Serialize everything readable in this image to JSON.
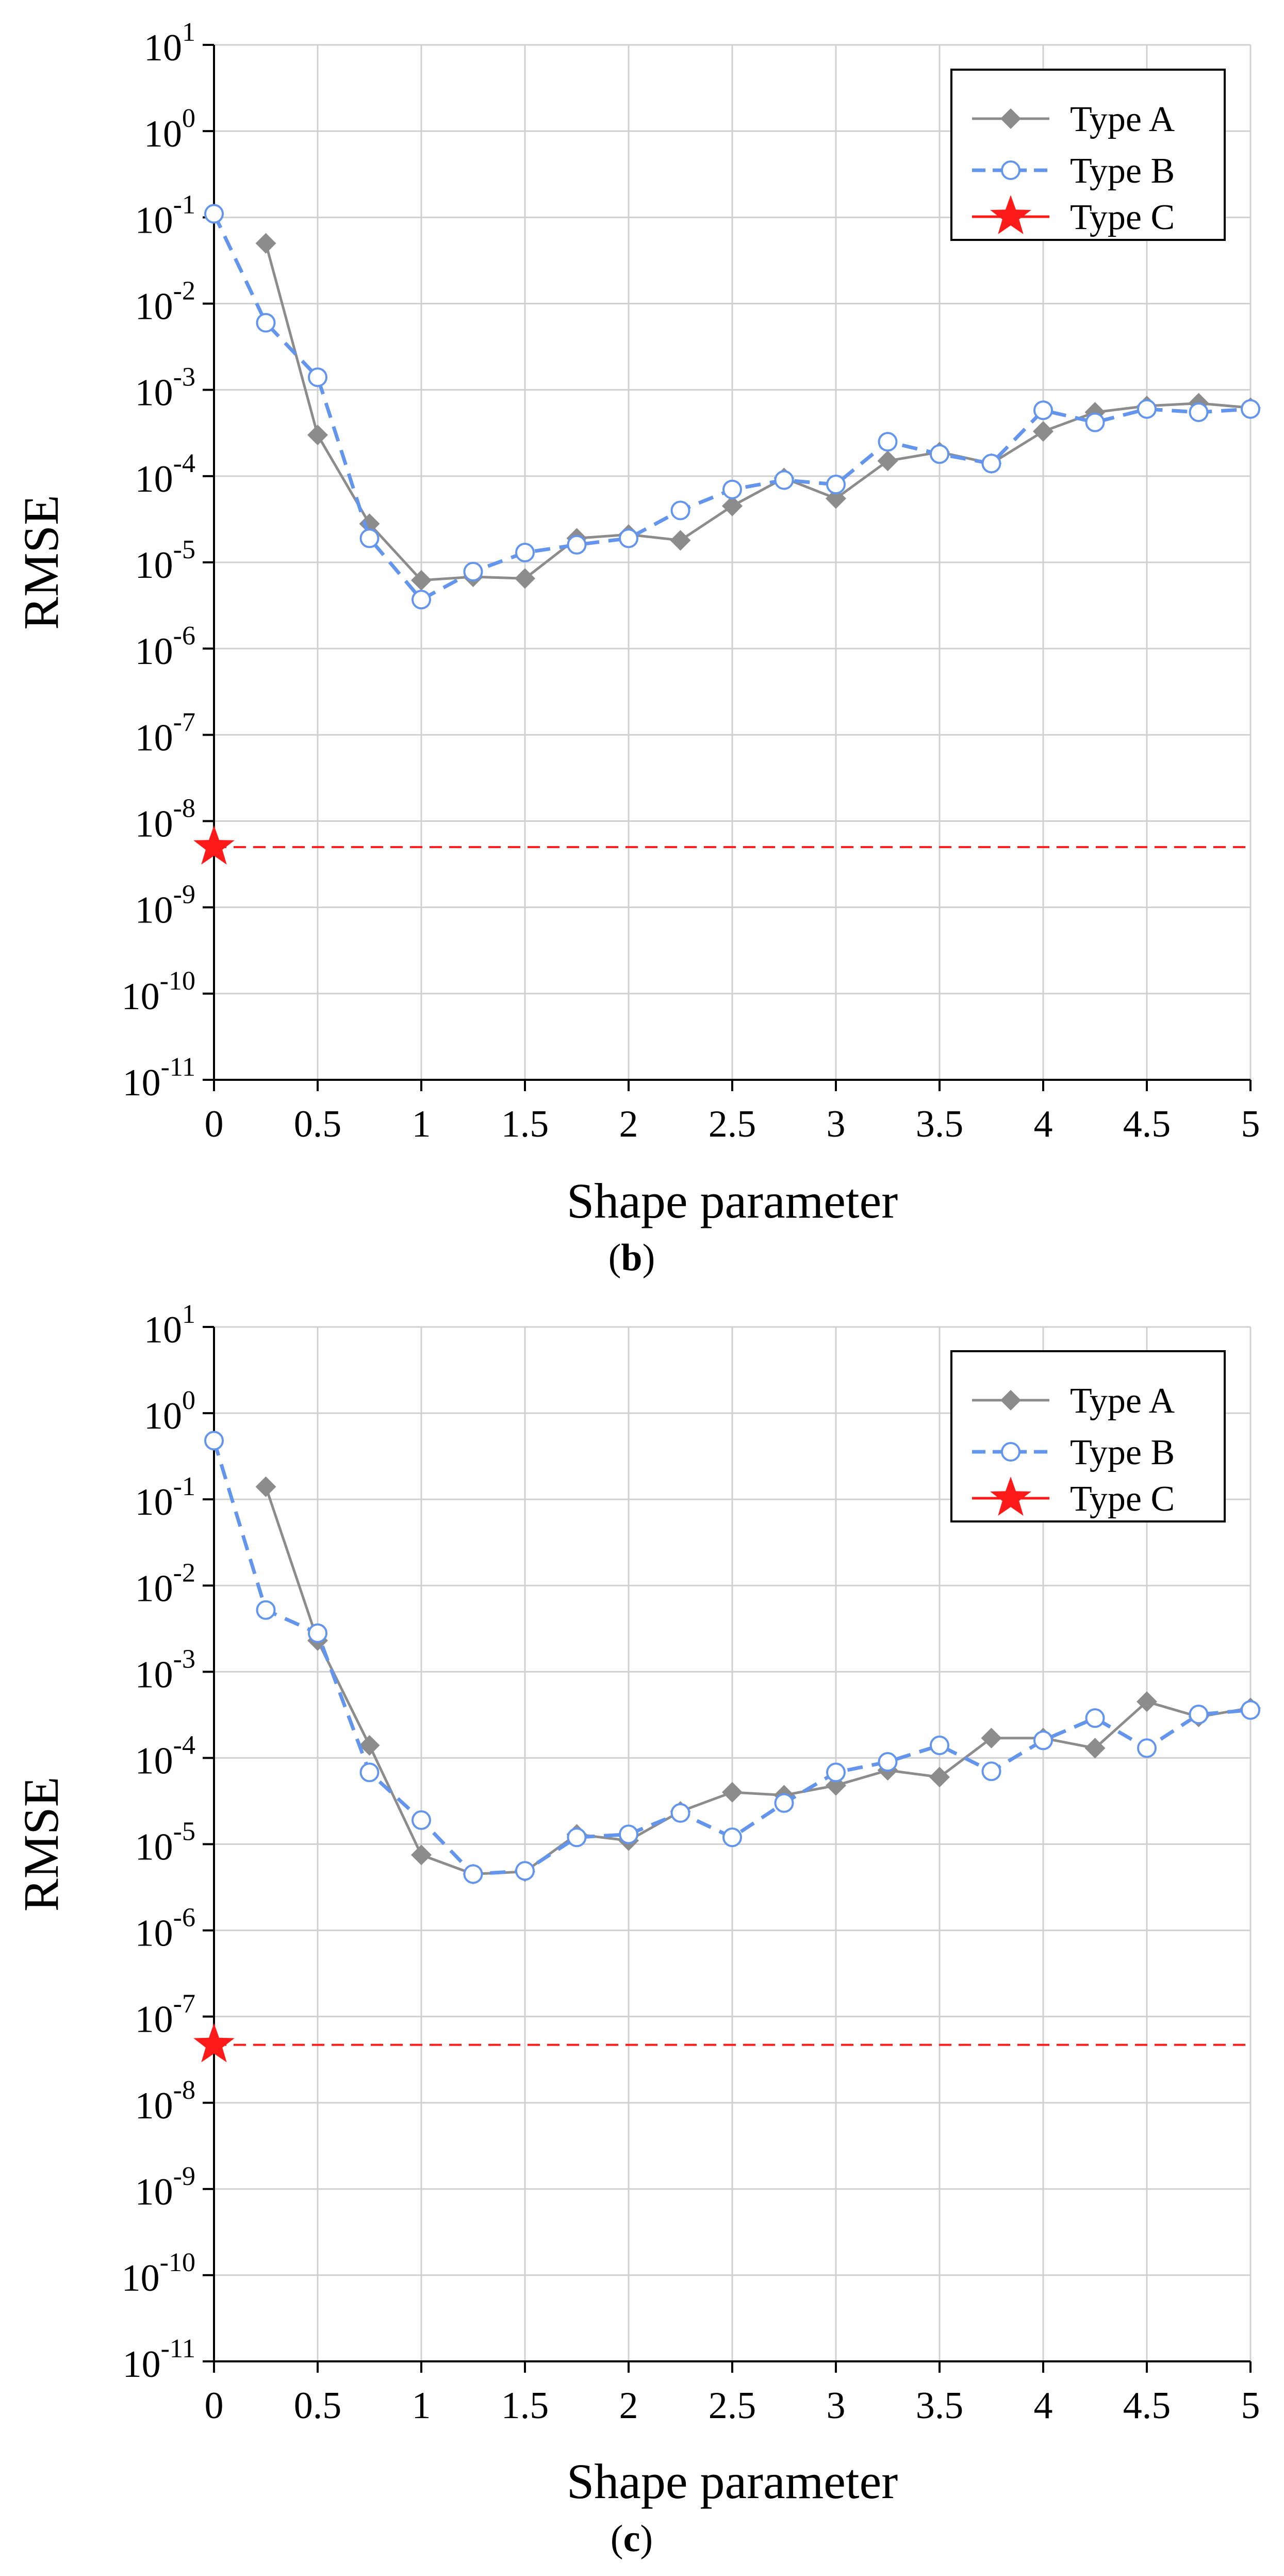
{
  "colors": {
    "type_a": "#8c8c8c",
    "type_b": "#6495ed",
    "type_c": "#ff1a1a",
    "grid": "#d0d0d0"
  },
  "chart_data": [
    {
      "type": "line",
      "panel_label": "b",
      "xlabel": "Shape parameter",
      "ylabel": "RMSE",
      "xlim": [
        0,
        5
      ],
      "ylim_exp": [
        -11,
        1
      ],
      "yscale": "log",
      "legend_position": "top-right",
      "xticks": [
        "0",
        "0.5",
        "1",
        "1.5",
        "2",
        "2.5",
        "3",
        "3.5",
        "4",
        "4.5",
        "5"
      ],
      "yticks": [
        {
          "base": "10",
          "exp": "1"
        },
        {
          "base": "10",
          "exp": "0"
        },
        {
          "base": "10",
          "exp": "-1"
        },
        {
          "base": "10",
          "exp": "-2"
        },
        {
          "base": "10",
          "exp": "-3"
        },
        {
          "base": "10",
          "exp": "-4"
        },
        {
          "base": "10",
          "exp": "-5"
        },
        {
          "base": "10",
          "exp": "-6"
        },
        {
          "base": "10",
          "exp": "-7"
        },
        {
          "base": "10",
          "exp": "-8"
        },
        {
          "base": "10",
          "exp": "-9"
        },
        {
          "base": "10",
          "exp": "-10"
        },
        {
          "base": "10",
          "exp": "-11"
        }
      ],
      "series": [
        {
          "name": "Type A",
          "x": [
            0.25,
            0.5,
            0.75,
            1,
            1.25,
            1.5,
            1.75,
            2,
            2.25,
            2.5,
            2.75,
            3,
            3.25,
            3.5,
            3.75,
            4,
            4.25,
            4.5,
            4.75,
            5
          ],
          "y": [
            0.05,
            0.0003,
            2.8e-05,
            6.2e-06,
            6.8e-06,
            6.5e-06,
            1.9e-05,
            2.1e-05,
            1.8e-05,
            4.5e-05,
            9.5e-05,
            5.5e-05,
            0.00015,
            0.00019,
            0.00014,
            0.00033,
            0.00055,
            0.00065,
            0.0007,
            0.00062
          ]
        },
        {
          "name": "Type B",
          "x": [
            0,
            0.25,
            0.5,
            0.75,
            1,
            1.25,
            1.5,
            1.75,
            2,
            2.25,
            2.5,
            2.75,
            3,
            3.25,
            3.5,
            3.75,
            4,
            4.25,
            4.5,
            4.75,
            5
          ],
          "y": [
            0.11,
            0.006,
            0.0014,
            1.9e-05,
            3.7e-06,
            7.8e-06,
            1.3e-05,
            1.6e-05,
            1.9e-05,
            4e-05,
            7e-05,
            9e-05,
            8e-05,
            0.00025,
            0.00018,
            0.00014,
            0.00058,
            0.00042,
            0.0006,
            0.00055,
            0.0006
          ]
        },
        {
          "name": "Type C",
          "x": [
            0
          ],
          "y": [
            5e-09
          ],
          "reference_line": 5e-09
        }
      ]
    },
    {
      "type": "line",
      "panel_label": "c",
      "xlabel": "Shape parameter",
      "ylabel": "RMSE",
      "xlim": [
        0,
        5
      ],
      "ylim_exp": [
        -11,
        1
      ],
      "yscale": "log",
      "legend_position": "top-right",
      "xticks": [
        "0",
        "0.5",
        "1",
        "1.5",
        "2",
        "2.5",
        "3",
        "3.5",
        "4",
        "4.5",
        "5"
      ],
      "yticks": [
        {
          "base": "10",
          "exp": "1"
        },
        {
          "base": "10",
          "exp": "0"
        },
        {
          "base": "10",
          "exp": "-1"
        },
        {
          "base": "10",
          "exp": "-2"
        },
        {
          "base": "10",
          "exp": "-3"
        },
        {
          "base": "10",
          "exp": "-4"
        },
        {
          "base": "10",
          "exp": "-5"
        },
        {
          "base": "10",
          "exp": "-6"
        },
        {
          "base": "10",
          "exp": "-7"
        },
        {
          "base": "10",
          "exp": "-8"
        },
        {
          "base": "10",
          "exp": "-9"
        },
        {
          "base": "10",
          "exp": "-10"
        },
        {
          "base": "10",
          "exp": "-11"
        }
      ],
      "series": [
        {
          "name": "Type A",
          "x": [
            0.25,
            0.5,
            0.75,
            1,
            1.25,
            1.5,
            1.75,
            2,
            2.25,
            2.5,
            2.75,
            3,
            3.25,
            3.5,
            3.75,
            4,
            4.25,
            4.5,
            4.75,
            5
          ],
          "y": [
            0.14,
            0.0023,
            0.00014,
            7.5e-06,
            4.5e-06,
            4.8e-06,
            1.3e-05,
            1.1e-05,
            2.4e-05,
            4e-05,
            3.7e-05,
            4.8e-05,
            7.2e-05,
            6e-05,
            0.00017,
            0.00017,
            0.00013,
            0.00045,
            0.0003,
            0.00038
          ]
        },
        {
          "name": "Type B",
          "x": [
            0,
            0.25,
            0.5,
            0.75,
            1,
            1.25,
            1.5,
            1.75,
            2,
            2.25,
            2.5,
            2.75,
            3,
            3.25,
            3.5,
            3.75,
            4,
            4.25,
            4.5,
            4.75,
            5
          ],
          "y": [
            0.48,
            0.0052,
            0.0028,
            6.8e-05,
            1.9e-05,
            4.5e-06,
            4.9e-06,
            1.2e-05,
            1.3e-05,
            2.3e-05,
            1.2e-05,
            3e-05,
            6.8e-05,
            9e-05,
            0.00014,
            7e-05,
            0.00016,
            0.00029,
            0.00013,
            0.00032,
            0.00036
          ]
        },
        {
          "name": "Type C",
          "x": [
            0
          ],
          "y": [
            4.7e-08
          ],
          "reference_line": 4.7e-08
        }
      ]
    }
  ]
}
